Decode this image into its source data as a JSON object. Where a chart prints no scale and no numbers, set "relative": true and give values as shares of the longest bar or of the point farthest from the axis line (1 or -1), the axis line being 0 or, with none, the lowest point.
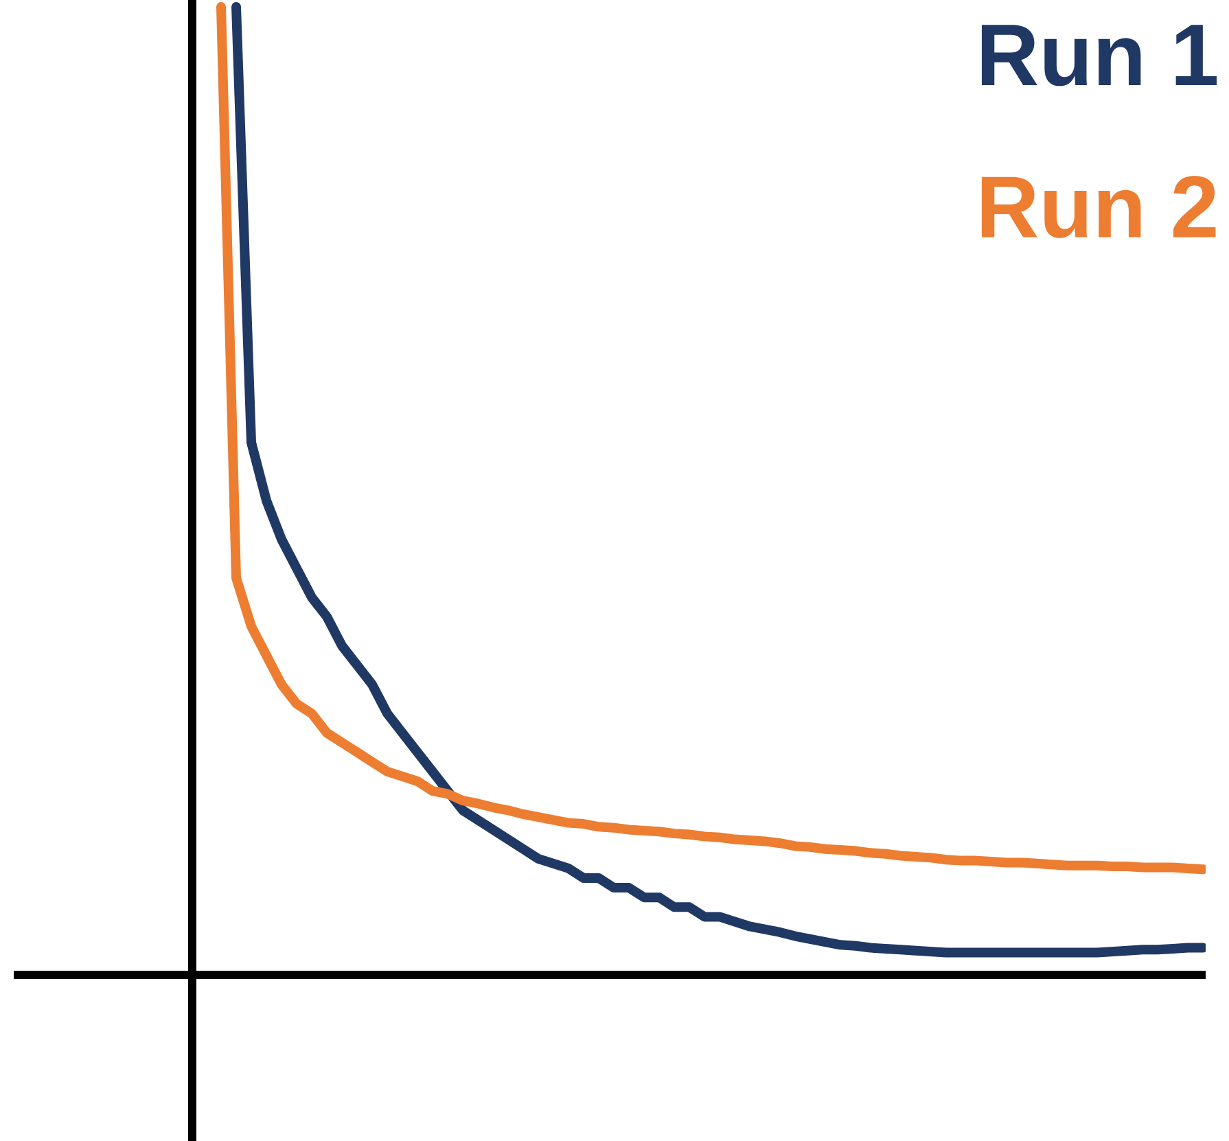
{
  "chart_data": {
    "type": "line",
    "relative": true,
    "legend": "top right",
    "categories": [
      null,
      null,
      null,
      null,
      null,
      null,
      null,
      null,
      null,
      null,
      null,
      null,
      null,
      null,
      null,
      null,
      null,
      null,
      null,
      null,
      null,
      null,
      null,
      null,
      null,
      null,
      null,
      null,
      null,
      null,
      null,
      null,
      null,
      null,
      null,
      null,
      null,
      null,
      null,
      null,
      null,
      null,
      null,
      null,
      null,
      null,
      null,
      null,
      null,
      null,
      null,
      null,
      null,
      null,
      null,
      null,
      null,
      null,
      null,
      null,
      null,
      null,
      null,
      null,
      null,
      null
    ],
    "series": [
      {
        "name": "Run 1",
        "color": "#203864",
        "values": [
          null,
          1.0,
          0.55,
          0.49,
          0.45,
          0.42,
          0.39,
          0.37,
          0.34,
          0.32,
          0.3,
          0.27,
          0.25,
          0.23,
          0.21,
          0.19,
          0.17,
          0.16,
          0.15,
          0.14,
          0.13,
          0.12,
          0.115,
          0.11,
          0.1,
          0.1,
          0.09,
          0.09,
          0.08,
          0.08,
          0.07,
          0.07,
          0.06,
          0.06,
          0.055,
          0.05,
          0.047,
          0.044,
          0.04,
          0.037,
          0.034,
          0.031,
          0.03,
          0.028,
          0.027,
          0.026,
          0.025,
          0.024,
          0.023,
          0.023,
          0.023,
          0.023,
          0.023,
          0.023,
          0.023,
          0.023,
          0.023,
          0.023,
          0.023,
          0.024,
          0.025,
          0.026,
          0.026,
          0.027,
          0.028,
          0.028
        ]
      },
      {
        "name": "Run 2",
        "color": "#ed7d31",
        "values": [
          1.0,
          0.41,
          0.36,
          0.33,
          0.3,
          0.28,
          0.27,
          0.25,
          0.24,
          0.23,
          0.22,
          0.21,
          0.205,
          0.2,
          0.19,
          0.187,
          0.18,
          0.177,
          0.173,
          0.17,
          0.166,
          0.163,
          0.16,
          0.157,
          0.156,
          0.153,
          0.152,
          0.15,
          0.149,
          0.148,
          0.146,
          0.145,
          0.143,
          0.142,
          0.14,
          0.139,
          0.138,
          0.136,
          0.133,
          0.132,
          0.13,
          0.129,
          0.128,
          0.126,
          0.125,
          0.123,
          0.122,
          0.121,
          0.119,
          0.118,
          0.118,
          0.117,
          0.116,
          0.116,
          0.115,
          0.114,
          0.113,
          0.113,
          0.113,
          0.112,
          0.112,
          0.111,
          0.111,
          0.111,
          0.11,
          0.109
        ]
      }
    ]
  }
}
